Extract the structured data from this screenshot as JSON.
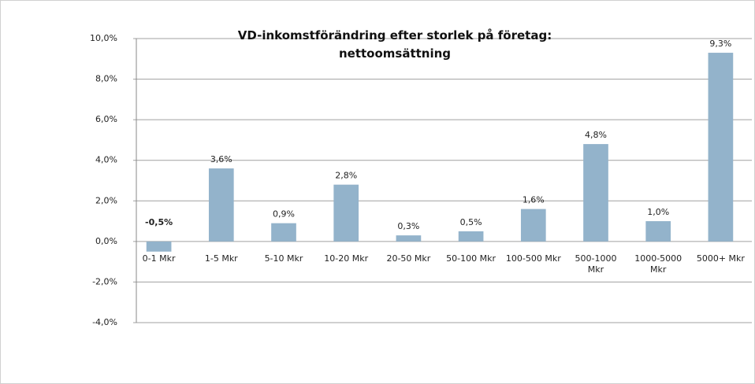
{
  "chart_data": {
    "type": "bar",
    "title": "VD-inkomstförändring efter storlek på företag: nettoomsättning",
    "categories": [
      "0-1 Mkr",
      "1-5 Mkr",
      "5-10 Mkr",
      "10-20 Mkr",
      "20-50 Mkr",
      "50-100 Mkr",
      "100-500 Mkr",
      "500-1000 Mkr",
      "1000-5000 Mkr",
      "5000+ Mkr"
    ],
    "values": [
      -0.5,
      3.6,
      0.9,
      2.8,
      0.3,
      0.5,
      1.6,
      4.8,
      1.0,
      9.3
    ],
    "value_labels": [
      "-0,5%",
      "3,6%",
      "0,9%",
      "2,8%",
      "0,3%",
      "0,5%",
      "1,6%",
      "4,8%",
      "1,0%",
      "9,3%"
    ],
    "color": "#93b3cb",
    "negative_label_color": "#c00000",
    "ylim": [
      -4,
      10
    ],
    "yticks": [
      {
        "value": -4,
        "label": "-4,0%"
      },
      {
        "value": -2,
        "label": "-2,0%"
      },
      {
        "value": 0,
        "label": "0,0%"
      },
      {
        "value": 2,
        "label": "2,0%"
      },
      {
        "value": 4,
        "label": "4,0%"
      },
      {
        "value": 6,
        "label": "6,0%"
      },
      {
        "value": 8,
        "label": "8,0%"
      },
      {
        "value": 10,
        "label": "10,0%"
      }
    ],
    "grid": true
  }
}
